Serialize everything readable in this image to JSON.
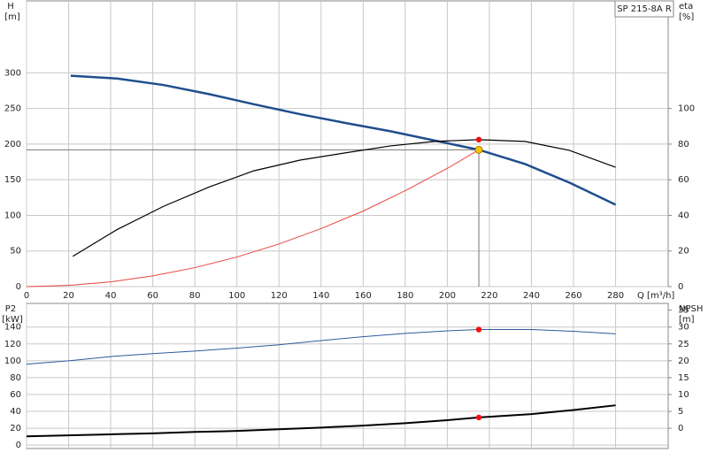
{
  "chart_data": [
    {
      "type": "line",
      "title": "SP 215-8A R",
      "xlabel": "Q [m³/h]",
      "ylabel": "H",
      "ylabel_unit": "[m]",
      "y2label": "eta",
      "y2label_unit": "[%]",
      "xlim": [
        0,
        305
      ],
      "xticks": [
        0,
        20,
        40,
        60,
        80,
        100,
        120,
        140,
        160,
        180,
        200,
        220,
        240,
        260,
        280
      ],
      "ylim": [
        0,
        401
      ],
      "yticks": [
        0,
        50,
        100,
        150,
        200,
        250,
        300
      ],
      "y2lim": [
        0,
        160.4
      ],
      "y2ticks": [
        0,
        20,
        40,
        60,
        80,
        100
      ],
      "grid": true,
      "series": [
        {
          "color": "#1f4e8c",
          "width": 2.5,
          "x": [
            21,
            43,
            65,
            87,
            108,
            130,
            151,
            173,
            194,
            215,
            237,
            258,
            280
          ],
          "values": [
            296,
            292,
            283,
            270,
            256,
            242,
            230,
            218,
            205,
            192,
            172,
            146,
            115
          ]
        },
        {
          "color": "#000000",
          "width": 1.2,
          "axis": "y2",
          "x": [
            22,
            43,
            65,
            87,
            108,
            130,
            151,
            173,
            194,
            215,
            237,
            258,
            280
          ],
          "values": [
            17,
            32,
            45,
            56,
            65,
            71,
            75,
            79,
            81.5,
            82.5,
            81.5,
            76.5,
            67
          ]
        },
        {
          "color": "#e8463c",
          "width": 1,
          "x": [
            0,
            20,
            40,
            60,
            80,
            100,
            120,
            140,
            160,
            180,
            200,
            215
          ],
          "values": [
            0,
            1.7,
            6.6,
            15,
            26.6,
            41.5,
            59.8,
            81.4,
            106,
            134.6,
            166,
            192
          ]
        }
      ],
      "markers": [
        {
          "x": 215,
          "y": 82.5,
          "axis": "y2",
          "color": "#ee1111"
        },
        {
          "x": 215,
          "y": 192,
          "color": "#f5c400",
          "guides": true
        }
      ]
    },
    {
      "type": "line",
      "ylabel": "P2",
      "ylabel_unit": "[kW]",
      "y2label": "NPSH",
      "y2label_unit": "[m]",
      "xlim": [
        0,
        305
      ],
      "xticks": [
        0,
        20,
        40,
        60,
        80,
        100,
        120,
        140,
        160,
        180,
        200,
        220,
        240,
        260,
        280
      ],
      "ylim": [
        -4,
        168
      ],
      "yticks": [
        0,
        20,
        40,
        60,
        80,
        100,
        120,
        140
      ],
      "y2lim": [
        -6,
        37
      ],
      "y2ticks": [
        0,
        5,
        10,
        15,
        20,
        25,
        30,
        35
      ],
      "grid": true,
      "series": [
        {
          "color": "#2c5c9a",
          "width": 1,
          "x": [
            0,
            20,
            40,
            60,
            80,
            100,
            120,
            140,
            160,
            180,
            200,
            215,
            240,
            260,
            280
          ],
          "values": [
            96,
            100,
            105,
            108.5,
            111.5,
            115,
            119,
            124,
            128.5,
            132.5,
            135.5,
            137,
            137,
            135,
            132
          ]
        },
        {
          "color": "#000000",
          "width": 2,
          "axis": "y2",
          "x": [
            0,
            20,
            40,
            60,
            80,
            100,
            120,
            140,
            160,
            180,
            200,
            215,
            240,
            260,
            280
          ],
          "values": [
            -2.4,
            -2.1,
            -1.8,
            -1.5,
            -1.1,
            -0.8,
            -0.3,
            0.2,
            0.8,
            1.5,
            2.4,
            3.2,
            4.2,
            5.4,
            6.8
          ]
        }
      ],
      "markers": [
        {
          "x": 215,
          "y": 137,
          "color": "#ee1111"
        },
        {
          "x": 215,
          "y": 3.2,
          "axis": "y2",
          "color": "#ee1111"
        }
      ]
    }
  ]
}
